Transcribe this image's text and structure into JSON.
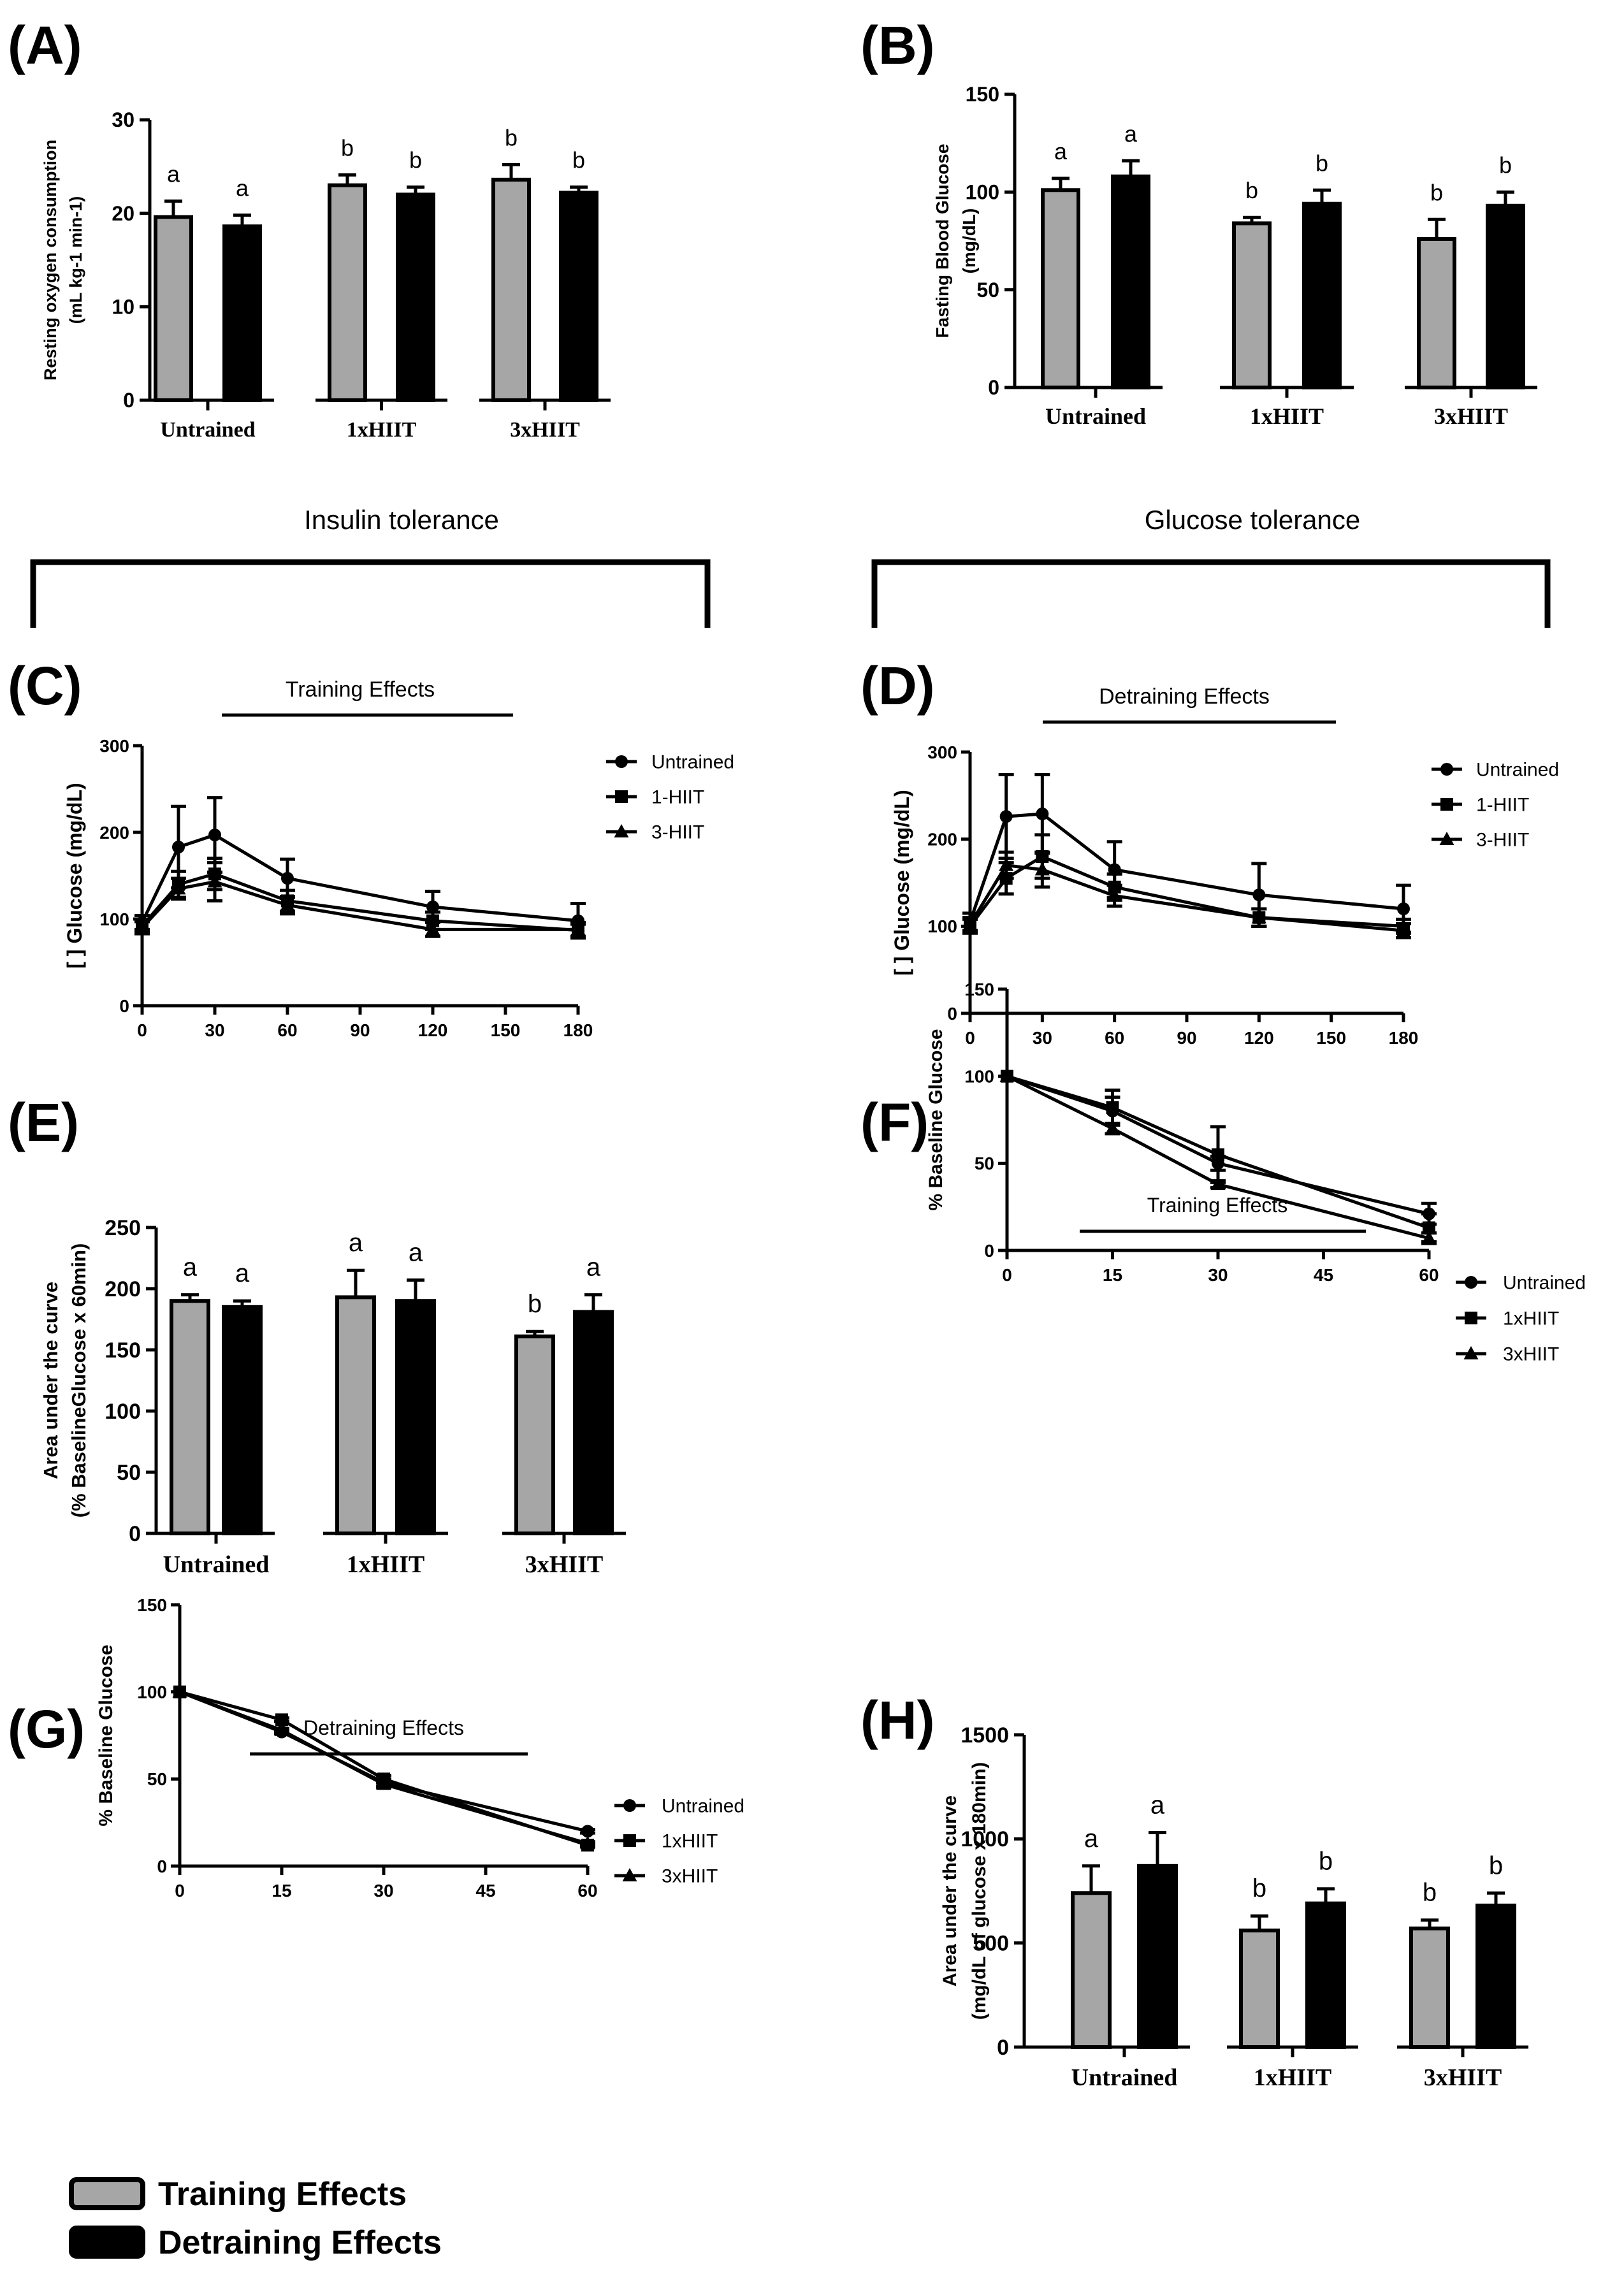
{
  "section_headings": {
    "insulin": "Insulin tolerance",
    "glucose": "Glucose tolerance"
  },
  "legend": {
    "training": "Training Effects",
    "detraining": "Detraining Effects"
  },
  "colors": {
    "training": "#a6a6a6",
    "detraining": "#000000",
    "axis": "#000000"
  },
  "chart_data": [
    {
      "id": "A",
      "label": "(A)",
      "type": "bar",
      "categories": [
        "Untrained",
        "1xHIIT",
        "3xHIIT"
      ],
      "series": [
        {
          "name": "Training Effects",
          "values": [
            19.6,
            23.0,
            23.6
          ],
          "errors": [
            1.7,
            1.1,
            1.6
          ]
        },
        {
          "name": "Detraining Effects",
          "values": [
            18.6,
            22.0,
            22.2
          ],
          "errors": [
            1.2,
            0.8,
            0.6
          ]
        }
      ],
      "significance": [
        [
          "a",
          "a"
        ],
        [
          "b",
          "b"
        ],
        [
          "b",
          "b"
        ]
      ],
      "ylabel_line1": "Resting oxygen consumption",
      "ylabel_line2": "(mL kg-1 min-1)",
      "ylim": [
        0,
        30
      ],
      "yticks": [
        "0",
        "10",
        "20",
        "30"
      ]
    },
    {
      "id": "B",
      "label": "(B)",
      "type": "bar",
      "categories": [
        "Untrained",
        "1xHIIT",
        "3xHIIT"
      ],
      "series": [
        {
          "name": "Training Effects",
          "values": [
            101,
            84,
            76
          ],
          "errors": [
            6,
            3,
            10
          ]
        },
        {
          "name": "Detraining Effects",
          "values": [
            108,
            94,
            93
          ],
          "errors": [
            8,
            7,
            7
          ]
        }
      ],
      "significance": [
        [
          "a",
          "a"
        ],
        [
          "b",
          "b"
        ],
        [
          "b",
          "b"
        ]
      ],
      "ylabel_line1": "Fasting Blood Glucose",
      "ylabel_line2": "(mg/dL)",
      "ylim": [
        0,
        150
      ],
      "yticks": [
        "0",
        "50",
        "100",
        "150"
      ]
    },
    {
      "id": "C",
      "label": "(C)",
      "type": "line",
      "title": "Training Effects",
      "x": [
        0,
        15,
        30,
        60,
        120,
        180
      ],
      "series": [
        {
          "name": "Untrained",
          "marker": "circle",
          "values": [
            96,
            183,
            197,
            147,
            114,
            98
          ],
          "errors": [
            8,
            47,
            43,
            22,
            18,
            20
          ]
        },
        {
          "name": "1-HIIT",
          "marker": "square",
          "values": [
            92,
            140,
            152,
            121,
            98,
            87
          ],
          "errors": [
            7,
            15,
            18,
            12,
            10,
            7
          ]
        },
        {
          "name": "3-HIIT",
          "marker": "triangle",
          "values": [
            90,
            135,
            143,
            116,
            88,
            88
          ],
          "errors": [
            7,
            12,
            22,
            10,
            8,
            8
          ]
        }
      ],
      "ylabel": "[ ] Glucose (mg/dL)",
      "xlim": [
        0,
        180
      ],
      "ylim": [
        0,
        300
      ],
      "xticks": [
        "0",
        "30",
        "60",
        "90",
        "120",
        "150",
        "180"
      ],
      "yticks": [
        "0",
        "100",
        "200",
        "300"
      ]
    },
    {
      "id": "D",
      "label": "(D)",
      "type": "line",
      "title": "Detraining Effects",
      "x": [
        0,
        15,
        30,
        60,
        120,
        180
      ],
      "series": [
        {
          "name": "Untrained",
          "marker": "circle",
          "values": [
            105,
            226,
            229,
            165,
            136,
            120
          ],
          "errors": [
            10,
            48,
            45,
            32,
            36,
            27
          ]
        },
        {
          "name": "1-HIIT",
          "marker": "square",
          "values": [
            100,
            155,
            180,
            145,
            110,
            95
          ],
          "errors": [
            8,
            18,
            25,
            15,
            10,
            8
          ]
        },
        {
          "name": "3-HIIT",
          "marker": "triangle",
          "values": [
            102,
            170,
            165,
            135,
            110,
            100
          ],
          "errors": [
            8,
            15,
            20,
            12,
            10,
            8
          ]
        }
      ],
      "ylabel": "[ ] Glucose (mg/dL)",
      "xlim": [
        0,
        180
      ],
      "ylim": [
        0,
        300
      ],
      "xticks": [
        "0",
        "30",
        "60",
        "90",
        "120",
        "150",
        "180"
      ],
      "yticks": [
        "0",
        "100",
        "200",
        "300"
      ]
    },
    {
      "id": "E",
      "label": "(E)",
      "type": "bar",
      "categories": [
        "Untrained",
        "1xHIIT",
        "3xHIIT"
      ],
      "series": [
        {
          "name": "Training Effects",
          "values": [
            190,
            193,
            161
          ],
          "errors": [
            5,
            22,
            4
          ]
        },
        {
          "name": "Detraining Effects",
          "values": [
            185,
            190,
            181
          ],
          "errors": [
            5,
            17,
            14
          ]
        }
      ],
      "significance": [
        [
          "a",
          "a"
        ],
        [
          "a",
          "a"
        ],
        [
          "b",
          "a"
        ]
      ],
      "ylabel_line1": "Area under the curve",
      "ylabel_line2": "(% BaselineGlucose x 60min)",
      "ylim": [
        0,
        250
      ],
      "yticks": [
        "0",
        "50",
        "100",
        "150",
        "200",
        "250"
      ]
    },
    {
      "id": "F",
      "label": "(F)",
      "type": "line",
      "title": "Training Effects",
      "x": [
        0,
        15,
        30,
        60
      ],
      "series": [
        {
          "name": "Untrained",
          "marker": "circle",
          "values": [
            100,
            80,
            50,
            21
          ],
          "errors": [
            0,
            8,
            4,
            6
          ]
        },
        {
          "name": "1xHIIT",
          "marker": "square",
          "values": [
            100,
            82,
            55,
            13
          ],
          "errors": [
            0,
            10,
            16,
            8
          ]
        },
        {
          "name": "3xHIIT",
          "marker": "triangle",
          "values": [
            100,
            70,
            38,
            7
          ],
          "errors": [
            0,
            3,
            2,
            3
          ]
        }
      ],
      "ylabel": "% Baseline Glucose",
      "xlim": [
        0,
        60
      ],
      "ylim": [
        0,
        150
      ],
      "xticks": [
        "0",
        "15",
        "30",
        "45",
        "60"
      ],
      "yticks": [
        "0",
        "50",
        "100",
        "150"
      ]
    },
    {
      "id": "G",
      "label": "(G)",
      "type": "line",
      "title": "Detraining Effects",
      "x": [
        0,
        15,
        30,
        60
      ],
      "series": [
        {
          "name": "Untrained",
          "marker": "circle",
          "values": [
            100,
            77,
            48,
            20
          ],
          "errors": [
            0,
            1,
            2,
            1
          ]
        },
        {
          "name": "1xHIIT",
          "marker": "square",
          "values": [
            100,
            84,
            50,
            12
          ],
          "errors": [
            0,
            1,
            2,
            1
          ]
        },
        {
          "name": "3xHIIT",
          "marker": "triangle",
          "values": [
            100,
            78,
            47,
            13
          ],
          "errors": [
            0,
            1,
            2,
            1
          ]
        }
      ],
      "ylabel": "% Baseline Glucose",
      "xlim": [
        0,
        60
      ],
      "ylim": [
        0,
        150
      ],
      "xticks": [
        "0",
        "15",
        "30",
        "45",
        "60"
      ],
      "yticks": [
        "0",
        "50",
        "100",
        "150"
      ]
    },
    {
      "id": "H",
      "label": "(H)",
      "type": "bar",
      "categories": [
        "Untrained",
        "1xHIIT",
        "3xHIIT"
      ],
      "series": [
        {
          "name": "Training Effects",
          "values": [
            740,
            560,
            570
          ],
          "errors": [
            130,
            70,
            40
          ]
        },
        {
          "name": "Detraining Effects",
          "values": [
            870,
            690,
            680
          ],
          "errors": [
            160,
            70,
            60
          ]
        }
      ],
      "significance": [
        [
          "a",
          "a"
        ],
        [
          "b",
          "b"
        ],
        [
          "b",
          "b"
        ]
      ],
      "ylabel_line1": "Area under the curve",
      "ylabel_line2": "(mg/dL of glucose x 180min)",
      "ylim": [
        0,
        1500
      ],
      "yticks": [
        "0",
        "500",
        "1000",
        "1500"
      ]
    }
  ]
}
